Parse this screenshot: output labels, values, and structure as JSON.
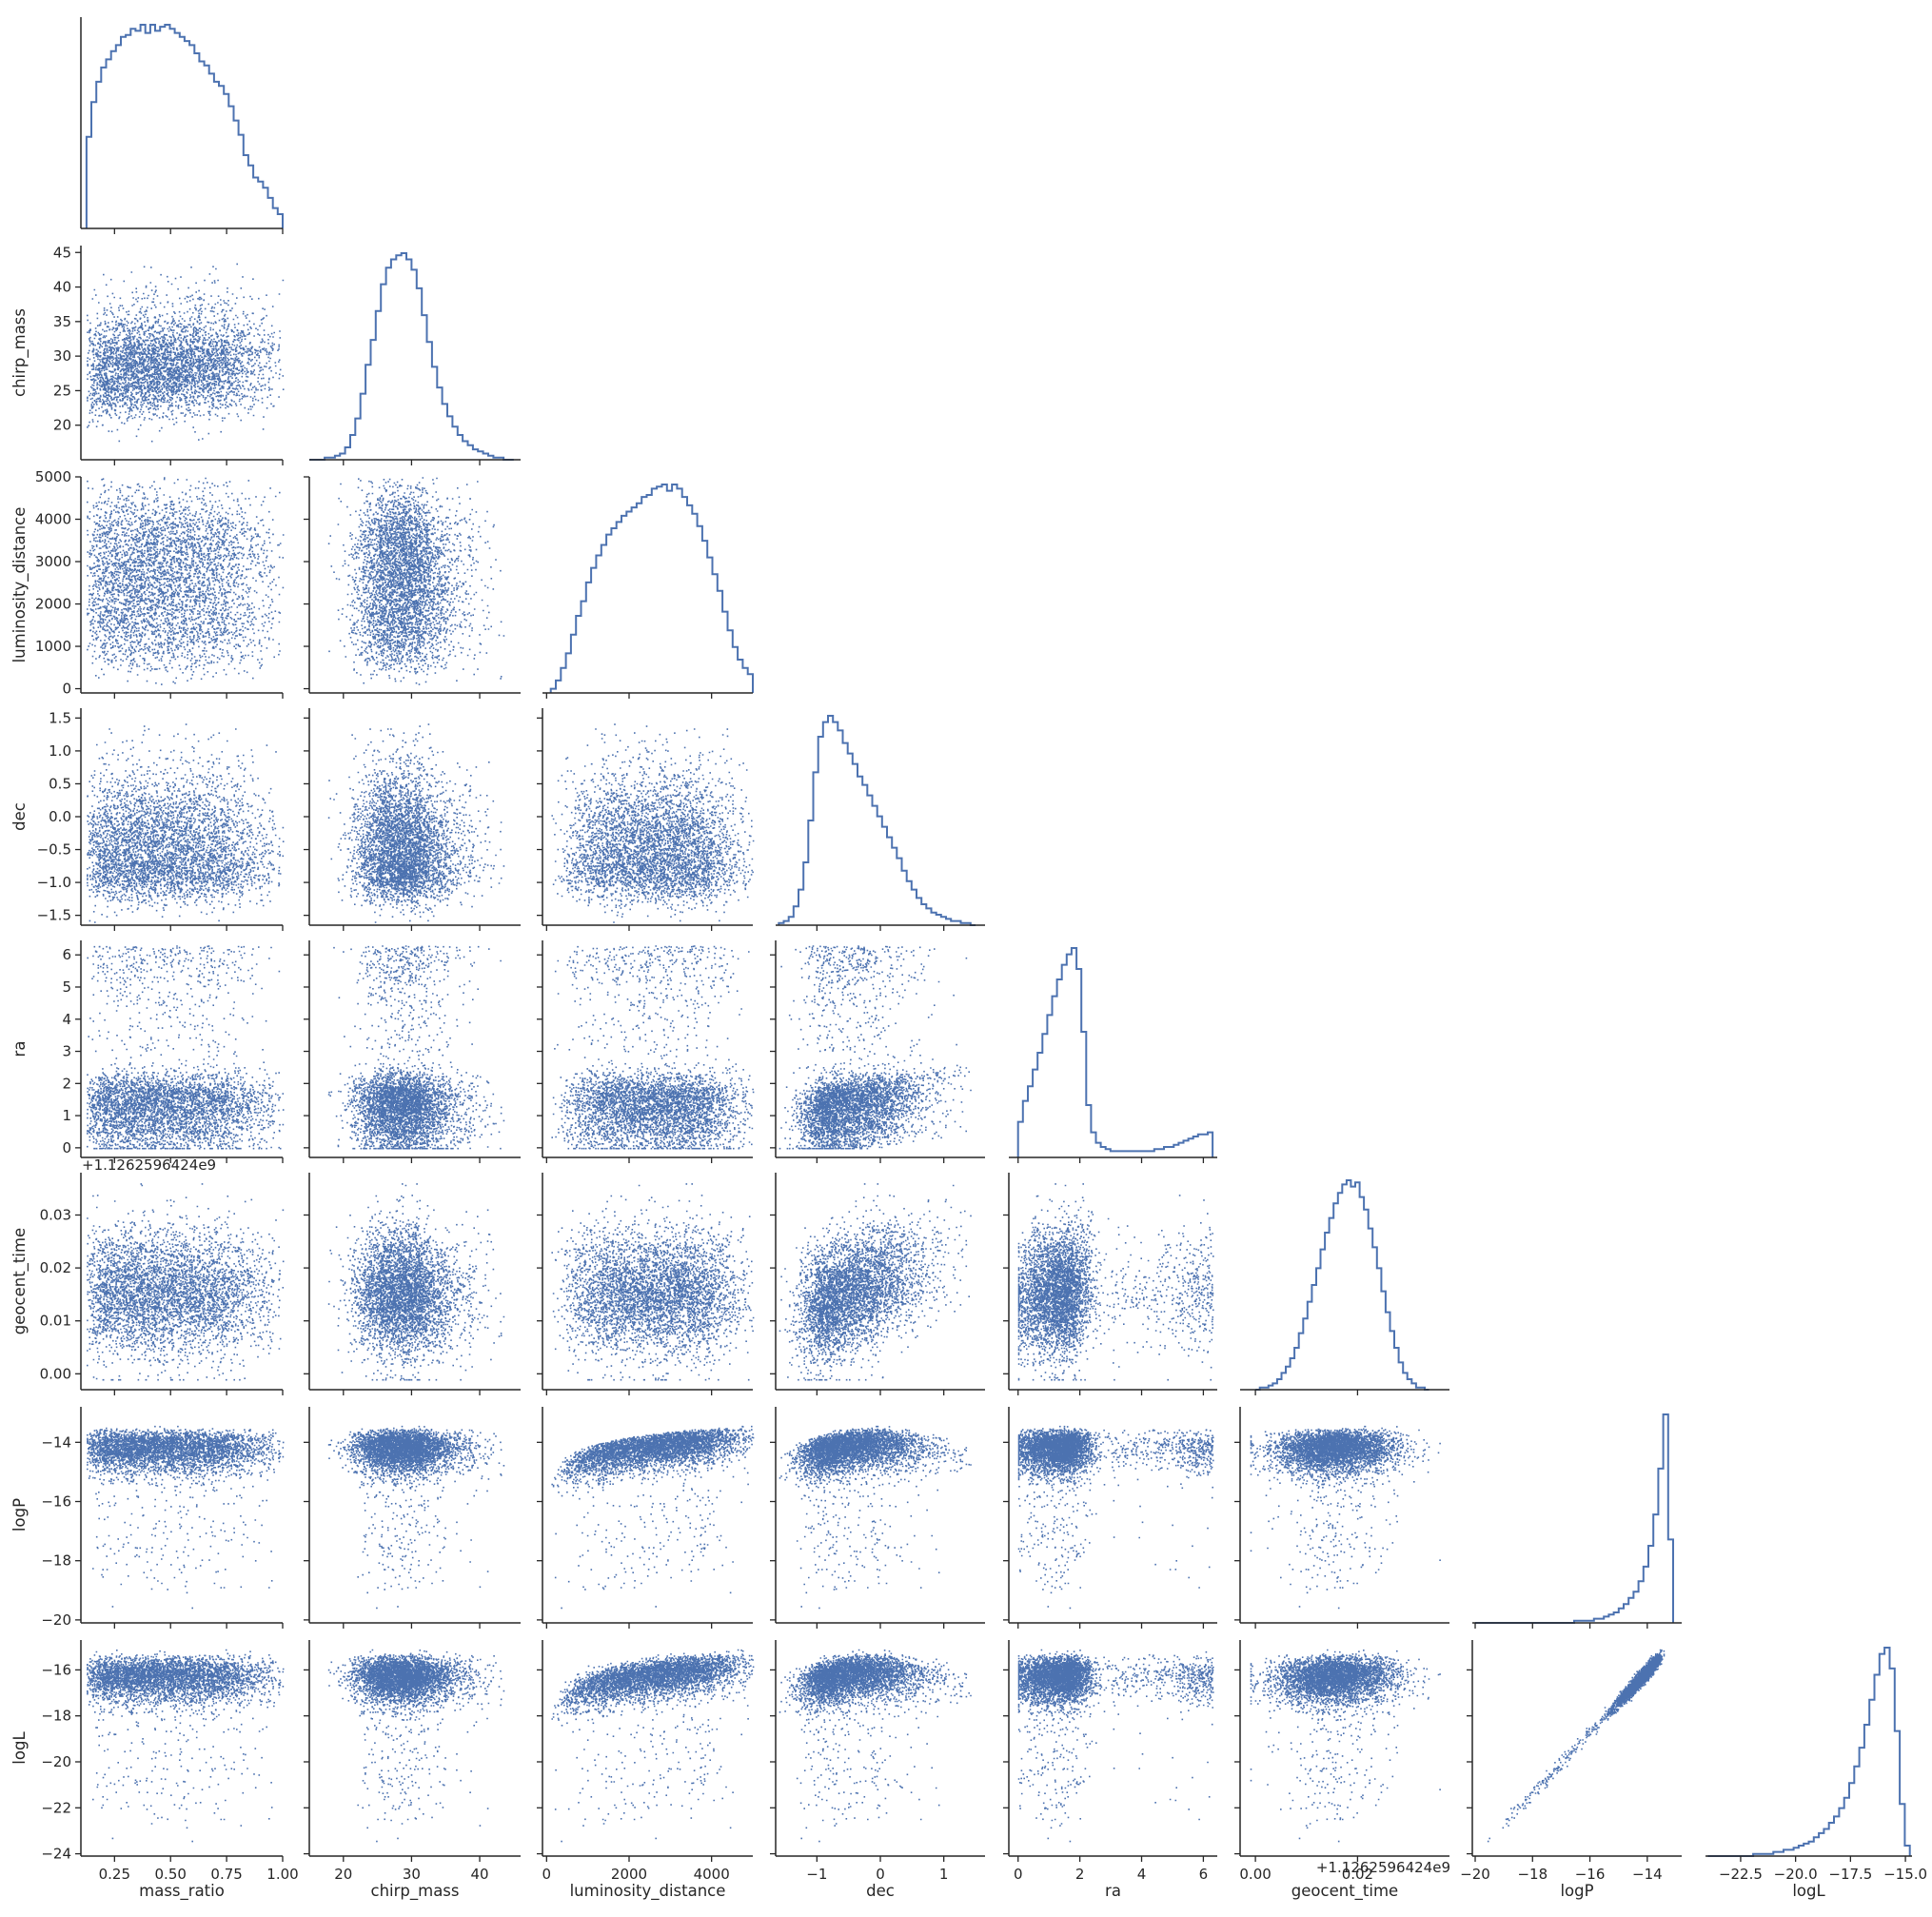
{
  "colors": {
    "series": "#4c72b0",
    "axis": "#262626",
    "text": "#262626",
    "background": "#ffffff"
  },
  "chart_data": {
    "type": "scatter",
    "layout": "corner pair plot (lower triangle scatter, diagonal step histograms)",
    "sample_size": 20000,
    "variables": [
      {
        "name": "mass_ratio",
        "xlabel": "mass_ratio",
        "ylabel": "",
        "range": [
          0.1,
          1.0
        ],
        "ticks": [
          0.25,
          0.5,
          0.75,
          1.0
        ],
        "tick_labels": [
          "0.25",
          "0.50",
          "0.75",
          "1.00"
        ],
        "offset": ""
      },
      {
        "name": "chirp_mass",
        "xlabel": "chirp_mass",
        "ylabel": "chirp_mass",
        "range": [
          15,
          46
        ],
        "ticks": [
          20,
          25,
          30,
          35,
          40,
          45
        ],
        "tick_labels": [
          "20",
          "25",
          "30",
          "35",
          "40",
          "45"
        ],
        "x_ticks": [
          20,
          30,
          40
        ],
        "x_tick_labels": [
          "20",
          "30",
          "40"
        ],
        "offset": ""
      },
      {
        "name": "luminosity_distance",
        "xlabel": "luminosity_distance",
        "ylabel": "luminosity_distance",
        "range": [
          -100,
          5000
        ],
        "ticks": [
          0,
          1000,
          2000,
          3000,
          4000,
          5000
        ],
        "tick_labels": [
          "0",
          "1000",
          "2000",
          "3000",
          "4000",
          "5000"
        ],
        "x_ticks": [
          0,
          2000,
          4000
        ],
        "x_tick_labels": [
          "0",
          "2000",
          "4000"
        ],
        "offset": ""
      },
      {
        "name": "dec",
        "xlabel": "dec",
        "ylabel": "dec",
        "range": [
          -1.65,
          1.65
        ],
        "ticks": [
          -1.5,
          -1.0,
          -0.5,
          0.0,
          0.5,
          1.0,
          1.5
        ],
        "tick_labels": [
          "−1.5",
          "−1.0",
          "−0.5",
          "0.0",
          "0.5",
          "1.0",
          "1.5"
        ],
        "x_ticks": [
          -1,
          0,
          1
        ],
        "x_tick_labels": [
          "−1",
          "0",
          "1"
        ],
        "offset": ""
      },
      {
        "name": "ra",
        "xlabel": "ra",
        "ylabel": "ra",
        "range": [
          -0.3,
          6.45
        ],
        "ticks": [
          0,
          1,
          2,
          3,
          4,
          5,
          6
        ],
        "tick_labels": [
          "0",
          "1",
          "2",
          "3",
          "4",
          "5",
          "6"
        ],
        "x_ticks": [
          0,
          2,
          4,
          6
        ],
        "x_tick_labels": [
          "0",
          "2",
          "4",
          "6"
        ],
        "offset": ""
      },
      {
        "name": "geocent_time",
        "xlabel": "geocent_time",
        "ylabel": "geocent_time",
        "range": [
          -0.003,
          0.038
        ],
        "ticks": [
          0.0,
          0.01,
          0.02,
          0.03
        ],
        "tick_labels": [
          "0.00",
          "0.01",
          "0.02",
          "0.03"
        ],
        "x_ticks": [
          0.0,
          0.02
        ],
        "x_tick_labels": [
          "0.00",
          "0.02"
        ],
        "offset": "+1.1262596424e9"
      },
      {
        "name": "logP",
        "xlabel": "logP",
        "ylabel": "logP",
        "range": [
          -20.1,
          -12.8
        ],
        "ticks": [
          -20,
          -18,
          -16,
          -14
        ],
        "tick_labels": [
          "−20",
          "−18",
          "−16",
          "−14"
        ],
        "offset": ""
      },
      {
        "name": "logL",
        "xlabel": "logL",
        "ylabel": "logL",
        "range": [
          -24.1,
          -14.7
        ],
        "ticks": [
          -24,
          -22,
          -20,
          -18,
          -16
        ],
        "tick_labels": [
          "−24",
          "−22",
          "−20",
          "−18",
          "−16"
        ],
        "x_ticks": [
          -22.5,
          -20.0,
          -17.5,
          -15.0
        ],
        "x_tick_labels": [
          "−22.5",
          "−20.0",
          "−17.5",
          "−15.0"
        ],
        "offset": ""
      }
    ],
    "marginals": {
      "mass_ratio": {
        "bins": [
          0.125,
          1.0
        ],
        "counts": [
          0.45,
          0.62,
          0.72,
          0.79,
          0.83,
          0.87,
          0.9,
          0.94,
          0.95,
          0.98,
          0.97,
          1.0,
          0.96,
          1.0,
          0.97,
          0.99,
          1.0,
          0.98,
          0.96,
          0.94,
          0.92,
          0.9,
          0.86,
          0.82,
          0.8,
          0.76,
          0.72,
          0.7,
          0.66,
          0.6,
          0.53,
          0.46,
          0.36,
          0.31,
          0.25,
          0.23,
          0.2,
          0.15,
          0.1,
          0.07
        ]
      },
      "chirp_mass": {
        "bins": [
          15,
          45
        ],
        "counts": [
          0.0,
          0.0,
          0.0,
          0.01,
          0.01,
          0.02,
          0.03,
          0.06,
          0.12,
          0.2,
          0.32,
          0.46,
          0.58,
          0.72,
          0.85,
          0.93,
          0.97,
          0.99,
          1.0,
          0.97,
          0.92,
          0.83,
          0.7,
          0.57,
          0.45,
          0.35,
          0.27,
          0.21,
          0.16,
          0.12,
          0.09,
          0.07,
          0.05,
          0.04,
          0.03,
          0.02,
          0.01,
          0.01,
          0.0,
          0.0
        ]
      },
      "luminosity_distance": {
        "bins": [
          100,
          5000
        ],
        "counts": [
          0.02,
          0.06,
          0.12,
          0.19,
          0.28,
          0.37,
          0.44,
          0.53,
          0.6,
          0.66,
          0.71,
          0.76,
          0.79,
          0.82,
          0.85,
          0.87,
          0.89,
          0.91,
          0.94,
          0.95,
          0.98,
          0.99,
          1.0,
          0.97,
          1.0,
          0.98,
          0.94,
          0.9,
          0.86,
          0.8,
          0.73,
          0.65,
          0.57,
          0.49,
          0.39,
          0.3,
          0.22,
          0.16,
          0.12,
          0.09
        ]
      },
      "dec": {
        "bins": [
          -1.6,
          1.5
        ],
        "counts": [
          0.01,
          0.02,
          0.04,
          0.09,
          0.17,
          0.3,
          0.5,
          0.73,
          0.9,
          0.97,
          1.0,
          0.97,
          0.93,
          0.87,
          0.82,
          0.77,
          0.71,
          0.67,
          0.62,
          0.57,
          0.52,
          0.47,
          0.42,
          0.37,
          0.32,
          0.26,
          0.21,
          0.17,
          0.13,
          0.1,
          0.08,
          0.06,
          0.05,
          0.04,
          0.03,
          0.02,
          0.02,
          0.01,
          0.01,
          0.0
        ]
      },
      "ra": {
        "bins": [
          0.0,
          6.3
        ],
        "counts": [
          0.17,
          0.27,
          0.34,
          0.42,
          0.5,
          0.59,
          0.68,
          0.77,
          0.85,
          0.92,
          0.97,
          1.0,
          0.9,
          0.6,
          0.25,
          0.12,
          0.07,
          0.05,
          0.04,
          0.03,
          0.03,
          0.03,
          0.03,
          0.03,
          0.03,
          0.03,
          0.03,
          0.03,
          0.04,
          0.04,
          0.05,
          0.05,
          0.06,
          0.07,
          0.08,
          0.09,
          0.1,
          0.11,
          0.11,
          0.12
        ]
      },
      "geocent_time": {
        "bins": [
          0.0,
          0.034
        ],
        "counts": [
          0.0,
          0.01,
          0.01,
          0.02,
          0.03,
          0.05,
          0.08,
          0.11,
          0.15,
          0.2,
          0.27,
          0.34,
          0.42,
          0.5,
          0.58,
          0.67,
          0.75,
          0.82,
          0.89,
          0.94,
          0.98,
          1.0,
          0.97,
          0.99,
          0.92,
          0.86,
          0.77,
          0.68,
          0.58,
          0.47,
          0.37,
          0.28,
          0.2,
          0.13,
          0.08,
          0.05,
          0.03,
          0.01,
          0.01,
          0.0
        ]
      },
      "logP": {
        "bins": [
          -20.0,
          -13.1
        ],
        "counts": [
          0.0,
          0.0,
          0.0,
          0.0,
          0.0,
          0.0,
          0.0,
          0.0,
          0.0,
          0.0,
          0.0,
          0.0,
          0.0,
          0.0,
          0.0,
          0.0,
          0.0,
          0.0,
          0.0,
          0.0,
          0.01,
          0.01,
          0.01,
          0.01,
          0.02,
          0.02,
          0.03,
          0.04,
          0.05,
          0.07,
          0.09,
          0.12,
          0.15,
          0.2,
          0.27,
          0.37,
          0.52,
          0.74,
          1.0,
          0.4
        ]
      },
      "logL": {
        "bins": [
          -24.0,
          -14.8
        ],
        "counts": [
          0.0,
          0.0,
          0.0,
          0.0,
          0.0,
          0.0,
          0.0,
          0.0,
          0.0,
          0.01,
          0.01,
          0.01,
          0.01,
          0.02,
          0.02,
          0.03,
          0.03,
          0.04,
          0.05,
          0.06,
          0.07,
          0.09,
          0.11,
          0.13,
          0.16,
          0.19,
          0.23,
          0.28,
          0.35,
          0.43,
          0.52,
          0.63,
          0.75,
          0.87,
          0.97,
          1.0,
          0.9,
          0.6,
          0.25,
          0.05
        ]
      }
    }
  }
}
